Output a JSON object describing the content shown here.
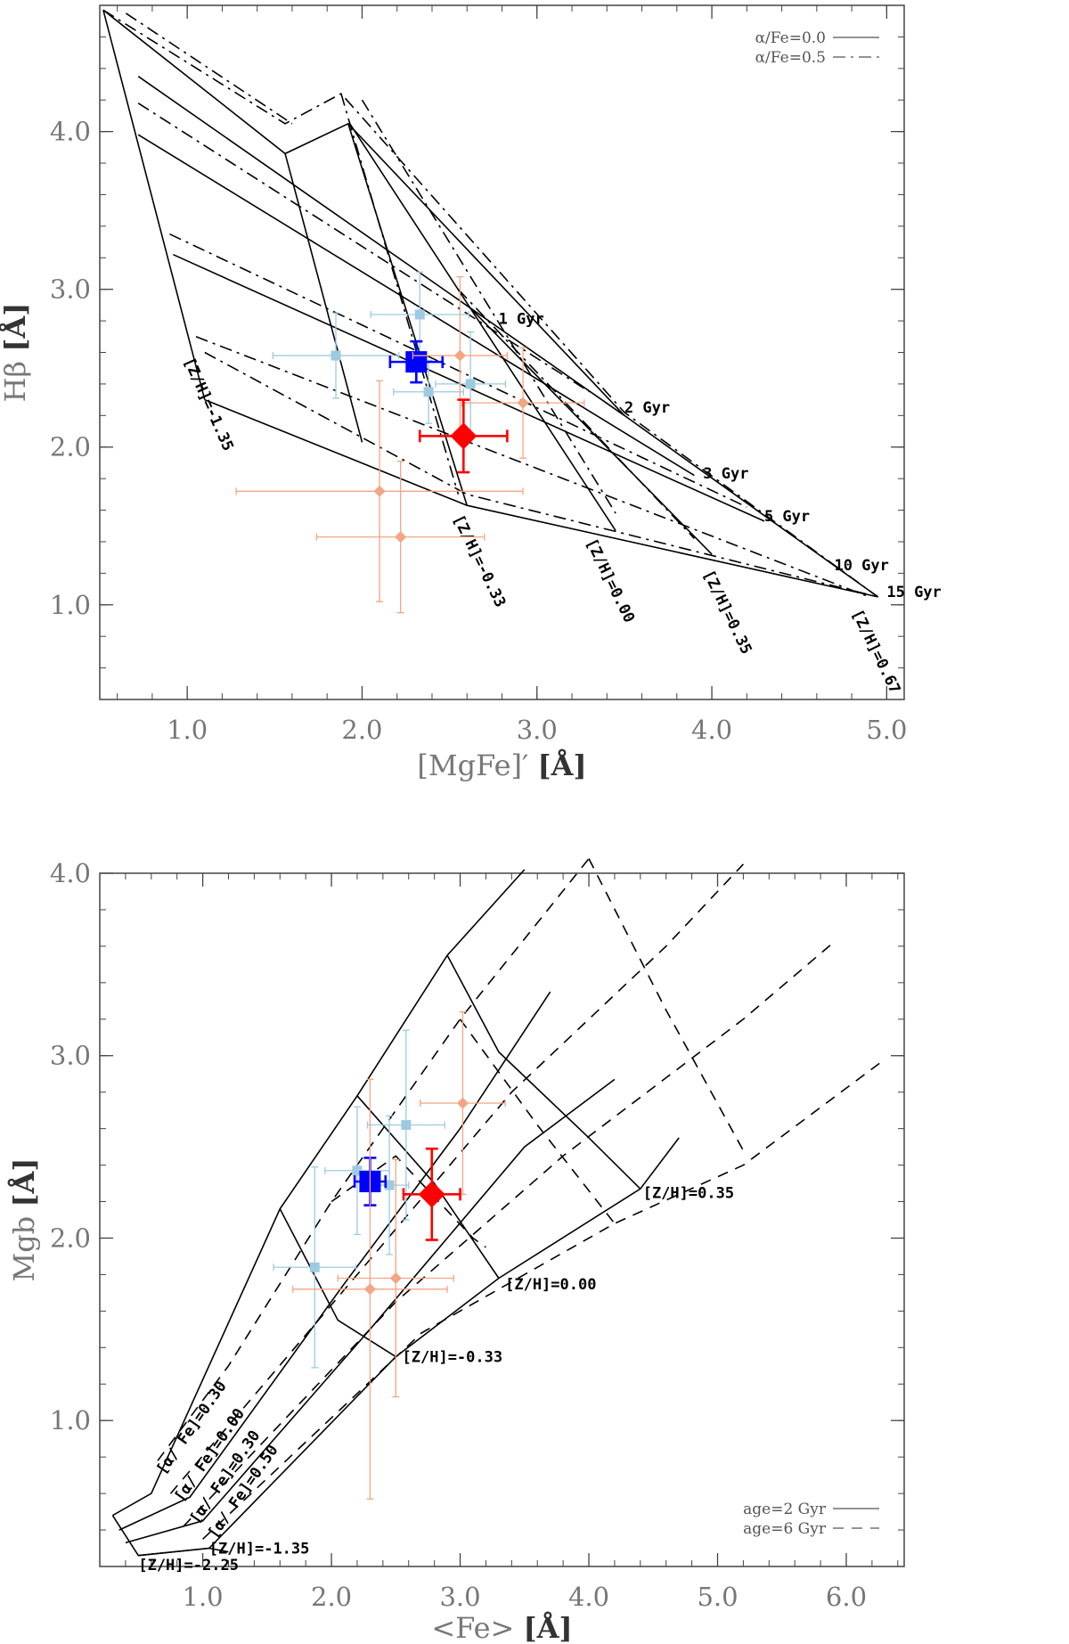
{
  "chart_data": [
    {
      "type": "scatter",
      "panel": "top",
      "xlabel": "[MgFe]′",
      "xunit": "[Å]",
      "ylabel": "Hβ",
      "yunit": "[Å]",
      "xlim": [
        0.5,
        5.1
      ],
      "ylim": [
        0.4,
        4.8
      ],
      "xticks": [
        "1.0",
        "2.0",
        "3.0",
        "4.0",
        "5.0"
      ],
      "yticks": [
        "1.0",
        "2.0",
        "3.0",
        "4.0"
      ],
      "xtick_values": [
        1.0,
        2.0,
        3.0,
        4.0,
        5.0
      ],
      "ytick_values": [
        1.0,
        2.0,
        3.0,
        4.0
      ],
      "legend": [
        {
          "label": "α/Fe=0.0",
          "style": "solid"
        },
        {
          "label": "α/Fe=0.5",
          "style": "dashdot"
        }
      ],
      "model_grid": [
        {
          "style": "solid",
          "points": [
            [
              0.52,
              4.77
            ],
            [
              1.1,
              2.3
            ]
          ]
        },
        {
          "style": "solid",
          "points": [
            [
              0.52,
              4.77
            ],
            [
              1.56,
              3.86
            ],
            [
              1.92,
              4.05
            ],
            [
              3.5,
              2.2
            ],
            [
              4.95,
              1.05
            ]
          ]
        },
        {
          "style": "solid",
          "points": [
            [
              0.72,
              4.35
            ],
            [
              3.5,
              2.2
            ]
          ]
        },
        {
          "style": "solid",
          "points": [
            [
              0.72,
              3.98
            ],
            [
              3.9,
              1.82
            ]
          ]
        },
        {
          "style": "solid",
          "points": [
            [
              0.92,
              3.22
            ],
            [
              4.3,
              1.53
            ]
          ]
        },
        {
          "style": "solid",
          "points": [
            [
              1.1,
              2.3
            ],
            [
              2.6,
              1.63
            ],
            [
              4.95,
              1.05
            ]
          ]
        },
        {
          "style": "solid",
          "points": [
            [
              1.92,
              4.05
            ],
            [
              2.6,
              1.63
            ]
          ]
        },
        {
          "style": "solid",
          "points": [
            [
              1.56,
              3.86
            ],
            [
              2.0,
              2.03
            ]
          ]
        },
        {
          "style": "solid",
          "points": [
            [
              1.93,
              4.05
            ],
            [
              3.45,
              1.47
            ]
          ]
        },
        {
          "style": "solid",
          "points": [
            [
              2.62,
              2.88
            ],
            [
              4.0,
              1.32
            ]
          ]
        },
        {
          "style": "dashdot",
          "points": [
            [
              0.52,
              4.77
            ],
            [
              1.56,
              4.05
            ],
            [
              1.88,
              4.24
            ],
            [
              3.5,
              2.22
            ],
            [
              4.95,
              1.05
            ]
          ]
        },
        {
          "style": "dashdot",
          "points": [
            [
              0.65,
              4.75
            ],
            [
              1.6,
              4.05
            ]
          ]
        },
        {
          "style": "dashdot",
          "points": [
            [
              0.72,
              4.18
            ],
            [
              3.3,
              2.35
            ]
          ]
        },
        {
          "style": "dashdot",
          "points": [
            [
              0.9,
              3.35
            ],
            [
              4.2,
              1.62
            ]
          ]
        },
        {
          "style": "dashdot",
          "points": [
            [
              1.05,
              2.7
            ],
            [
              4.9,
              1.05
            ]
          ]
        },
        {
          "style": "dashdot",
          "points": [
            [
              1.1,
              2.6
            ],
            [
              2.6,
              1.7
            ],
            [
              4.95,
              1.05
            ]
          ]
        },
        {
          "style": "dashdot",
          "points": [
            [
              1.88,
              4.24
            ],
            [
              2.55,
              1.7
            ]
          ]
        },
        {
          "style": "dashdot",
          "points": [
            [
              2.0,
              4.2
            ],
            [
              3.45,
              1.58
            ]
          ]
        },
        {
          "style": "dashdot",
          "points": [
            [
              2.55,
              3.0
            ],
            [
              3.9,
              1.42
            ]
          ]
        }
      ],
      "grid_labels": [
        {
          "text": "1 Gyr",
          "x": 2.78,
          "y": 2.78,
          "angle": 0
        },
        {
          "text": "2 Gyr",
          "x": 3.5,
          "y": 2.22,
          "angle": 0
        },
        {
          "text": "3 Gyr",
          "x": 3.95,
          "y": 1.8,
          "angle": 0
        },
        {
          "text": "5 Gyr",
          "x": 4.3,
          "y": 1.53,
          "angle": 0
        },
        {
          "text": "10 Gyr",
          "x": 4.7,
          "y": 1.22,
          "angle": 0
        },
        {
          "text": "15 Gyr",
          "x": 5.0,
          "y": 1.05,
          "angle": 0
        },
        {
          "text": "[Z/H]=-1.35",
          "x": 0.98,
          "y": 2.55,
          "angle": 66
        },
        {
          "text": "[Z/H]=-0.33",
          "x": 2.52,
          "y": 1.55,
          "angle": 64
        },
        {
          "text": "[Z/H]=0.00",
          "x": 3.28,
          "y": 1.4,
          "angle": 64
        },
        {
          "text": "[Z/H]=0.35",
          "x": 3.95,
          "y": 1.2,
          "angle": 64
        },
        {
          "text": "[Z/H]=0.67",
          "x": 4.8,
          "y": 0.95,
          "angle": 64
        }
      ],
      "series": [
        {
          "name": "light-blue points",
          "color": "#9ecae1",
          "marker": "square",
          "points": [
            [
              1.85,
              2.58,
              0.36,
              0.27
            ],
            [
              2.33,
              2.84,
              0.28,
              0.27
            ],
            [
              2.38,
              2.35,
              0.2,
              0.2
            ],
            [
              2.62,
              2.4,
              0.2,
              0.33
            ]
          ]
        },
        {
          "name": "blue mean",
          "color": "#0000ff",
          "marker": "square",
          "points": [
            [
              2.31,
              2.54,
              0.15,
              0.13
            ]
          ]
        },
        {
          "name": "salmon points",
          "color": "#f4a582",
          "marker": "diamond",
          "points": [
            [
              2.1,
              1.72,
              0.82,
              0.7
            ],
            [
              2.22,
              1.43,
              0.48,
              0.48
            ],
            [
              2.56,
              2.58,
              0.27,
              0.5
            ],
            [
              2.92,
              2.28,
              0.35,
              0.35
            ]
          ]
        },
        {
          "name": "red mean",
          "color": "#ff0000",
          "marker": "diamond",
          "points": [
            [
              2.58,
              2.07,
              0.25,
              0.23
            ]
          ]
        }
      ]
    },
    {
      "type": "scatter",
      "panel": "bottom",
      "xlabel": "<Fe>",
      "xunit": "[Å]",
      "ylabel": "Mgb",
      "yunit": "[Å]",
      "xlim": [
        0.2,
        6.45
      ],
      "ylim": [
        0.2,
        4.0
      ],
      "xticks": [
        "1.0",
        "2.0",
        "3.0",
        "4.0",
        "5.0",
        "6.0"
      ],
      "yticks": [
        "1.0",
        "2.0",
        "3.0",
        "4.0"
      ],
      "xtick_values": [
        1.0,
        2.0,
        3.0,
        4.0,
        5.0,
        6.0
      ],
      "ytick_values": [
        1.0,
        2.0,
        3.0,
        4.0
      ],
      "legend": [
        {
          "label": "age=2 Gyr",
          "style": "solid"
        },
        {
          "label": "age=6 Gyr",
          "style": "dashed"
        }
      ],
      "model_grid": [
        {
          "style": "solid",
          "points": [
            [
              0.3,
              0.48
            ],
            [
              0.6,
              0.6
            ],
            [
              1.6,
              2.16
            ],
            [
              2.2,
              2.78
            ],
            [
              2.9,
              3.55
            ],
            [
              3.5,
              4.02
            ]
          ]
        },
        {
          "style": "solid",
          "points": [
            [
              0.35,
              0.4
            ],
            [
              0.9,
              0.58
            ],
            [
              2.1,
              1.75
            ],
            [
              3.0,
              2.6
            ],
            [
              3.7,
              3.35
            ]
          ]
        },
        {
          "style": "solid",
          "points": [
            [
              0.4,
              0.33
            ],
            [
              1.0,
              0.45
            ],
            [
              2.3,
              1.5
            ],
            [
              3.5,
              2.5
            ],
            [
              4.2,
              2.87
            ]
          ]
        },
        {
          "style": "solid",
          "points": [
            [
              0.5,
              0.26
            ],
            [
              1.05,
              0.3
            ],
            [
              2.5,
              1.35
            ],
            [
              3.3,
              1.78
            ],
            [
              4.4,
              2.27
            ],
            [
              4.7,
              2.55
            ]
          ]
        },
        {
          "style": "solid",
          "points": [
            [
              0.3,
              0.48
            ],
            [
              0.5,
              0.26
            ],
            [
              1.05,
              0.3
            ],
            [
              1.2,
              0.28
            ]
          ]
        },
        {
          "style": "solid",
          "points": [
            [
              1.6,
              2.16
            ],
            [
              2.05,
              1.55
            ],
            [
              2.5,
              1.35
            ]
          ]
        },
        {
          "style": "solid",
          "points": [
            [
              2.2,
              2.78
            ],
            [
              2.8,
              2.3
            ],
            [
              3.3,
              1.78
            ]
          ]
        },
        {
          "style": "solid",
          "points": [
            [
              2.9,
              3.55
            ],
            [
              3.3,
              3.02
            ],
            [
              4.0,
              2.55
            ],
            [
              4.4,
              2.27
            ]
          ]
        },
        {
          "style": "dashed",
          "points": [
            [
              0.65,
              0.78
            ],
            [
              1.2,
              1.3
            ],
            [
              2.0,
              2.2
            ],
            [
              3.0,
              3.2
            ],
            [
              4.0,
              4.08
            ]
          ]
        },
        {
          "style": "dashed",
          "points": [
            [
              0.75,
              0.6
            ],
            [
              2.2,
              1.8
            ],
            [
              3.4,
              2.8
            ],
            [
              4.6,
              3.6
            ],
            [
              5.2,
              4.05
            ]
          ]
        },
        {
          "style": "dashed",
          "points": [
            [
              0.85,
              0.42
            ],
            [
              2.5,
              1.65
            ],
            [
              3.8,
              2.45
            ],
            [
              5.2,
              3.2
            ],
            [
              5.9,
              3.62
            ]
          ]
        },
        {
          "style": "dashed",
          "points": [
            [
              1.0,
              0.35
            ],
            [
              2.7,
              1.48
            ],
            [
              4.2,
              2.08
            ],
            [
              5.2,
              2.4
            ],
            [
              6.3,
              2.98
            ]
          ]
        },
        {
          "style": "dashed",
          "points": [
            [
              2.0,
              2.2
            ],
            [
              2.5,
              2.45
            ],
            [
              3.1,
              2.0
            ],
            [
              3.2,
              1.95
            ]
          ]
        },
        {
          "style": "dashed",
          "points": [
            [
              3.0,
              3.2
            ],
            [
              3.6,
              2.62
            ],
            [
              4.2,
              2.08
            ]
          ]
        },
        {
          "style": "dashed",
          "points": [
            [
              4.0,
              4.08
            ],
            [
              4.6,
              3.25
            ],
            [
              5.2,
              2.48
            ]
          ]
        }
      ],
      "grid_labels": [
        {
          "text": "[Z/H]=0.35",
          "x": 4.42,
          "y": 2.22,
          "angle": 0
        },
        {
          "text": "[Z/H]=0.00",
          "x": 3.35,
          "y": 1.72,
          "angle": 0
        },
        {
          "text": "[Z/H]=-0.33",
          "x": 2.55,
          "y": 1.32,
          "angle": 0
        },
        {
          "text": "[Z/H]=-1.35",
          "x": 1.05,
          "y": 0.27,
          "angle": 0
        },
        {
          "text": "[Z/H]=-2.25",
          "x": 0.5,
          "y": 0.18,
          "angle": 0
        },
        {
          "text": "[α/ Fe]=0.30",
          "x": 0.7,
          "y": 0.7,
          "angle": -55
        },
        {
          "text": "[α/ Fe]=0.00",
          "x": 0.84,
          "y": 0.55,
          "angle": -55
        },
        {
          "text": "[α/ Fe]=0.30",
          "x": 0.96,
          "y": 0.43,
          "angle": -55
        },
        {
          "text": "[α/ Fe]=0.50",
          "x": 1.1,
          "y": 0.35,
          "angle": -55
        }
      ],
      "series": [
        {
          "name": "light-blue points",
          "color": "#9ecae1",
          "marker": "square",
          "points": [
            [
              1.87,
              1.84,
              0.32,
              0.55
            ],
            [
              2.2,
              2.37,
              0.25,
              0.35
            ],
            [
              2.58,
              2.62,
              0.3,
              0.52
            ],
            [
              2.45,
              2.29,
              0.15,
              0.38
            ]
          ]
        },
        {
          "name": "blue mean",
          "color": "#0000ff",
          "marker": "square",
          "points": [
            [
              2.3,
              2.31,
              0.12,
              0.13
            ]
          ]
        },
        {
          "name": "salmon points",
          "color": "#f4a582",
          "marker": "diamond",
          "points": [
            [
              2.3,
              1.72,
              0.6,
              1.15
            ],
            [
              2.5,
              1.78,
              0.45,
              0.65
            ],
            [
              3.02,
              2.74,
              0.33,
              0.5
            ]
          ]
        },
        {
          "name": "red mean",
          "color": "#ff0000",
          "marker": "diamond",
          "points": [
            [
              2.78,
              2.24,
              0.22,
              0.25
            ]
          ]
        }
      ]
    }
  ]
}
